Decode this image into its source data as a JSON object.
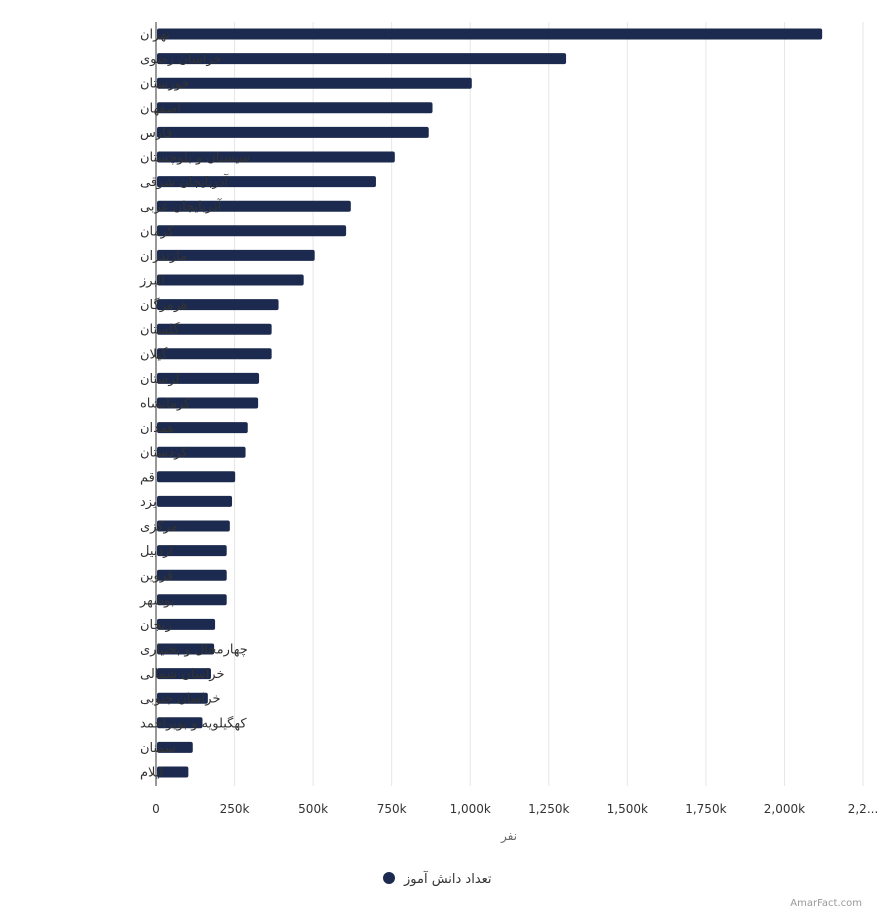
{
  "chart_data": {
    "type": "bar",
    "orientation": "horizontal",
    "categories": [
      "تهران",
      "خراسان رضوی",
      "خوزستان",
      "اصفهان",
      "فارس",
      "سیستان و بلوچستان",
      "آذربایجان شرقی",
      "آذربایجان غربی",
      "کرمان",
      "مازندران",
      "البرز",
      "هرمزگان",
      "گلستان",
      "گیلان",
      "لرستان",
      "کرمانشاه",
      "همدان",
      "کردستان",
      "قم",
      "یزد",
      "مرکزی",
      "اردبیل",
      "قزوین",
      "بوشهر",
      "زنجان",
      "چهارمحال و بختیاری",
      "خراسان شمالی",
      "خراسان جنوبی",
      "کهگیلویه و بویراحمد",
      "سمنان",
      "ایلام"
    ],
    "series": [
      {
        "name": "تعداد دانش آموز",
        "color": "#1b2a4e",
        "values": [
          2120000,
          1305000,
          1005000,
          880000,
          868000,
          760000,
          700000,
          620000,
          605000,
          505000,
          470000,
          390000,
          368000,
          368000,
          328000,
          325000,
          292000,
          285000,
          252000,
          242000,
          235000,
          225000,
          225000,
          225000,
          188000,
          185000,
          175000,
          165000,
          148000,
          117000,
          103000
        ]
      }
    ],
    "x_ticks": [
      "0",
      "250k",
      "500k",
      "750k",
      "1,000k",
      "1,250k",
      "1,500k",
      "1,750k",
      "2,000k",
      "2,2..."
    ],
    "xlim": [
      0,
      2250000
    ],
    "xlabel": "نفر",
    "grid": true,
    "legend_position": "bottom"
  },
  "credit": "AmarFact.com"
}
